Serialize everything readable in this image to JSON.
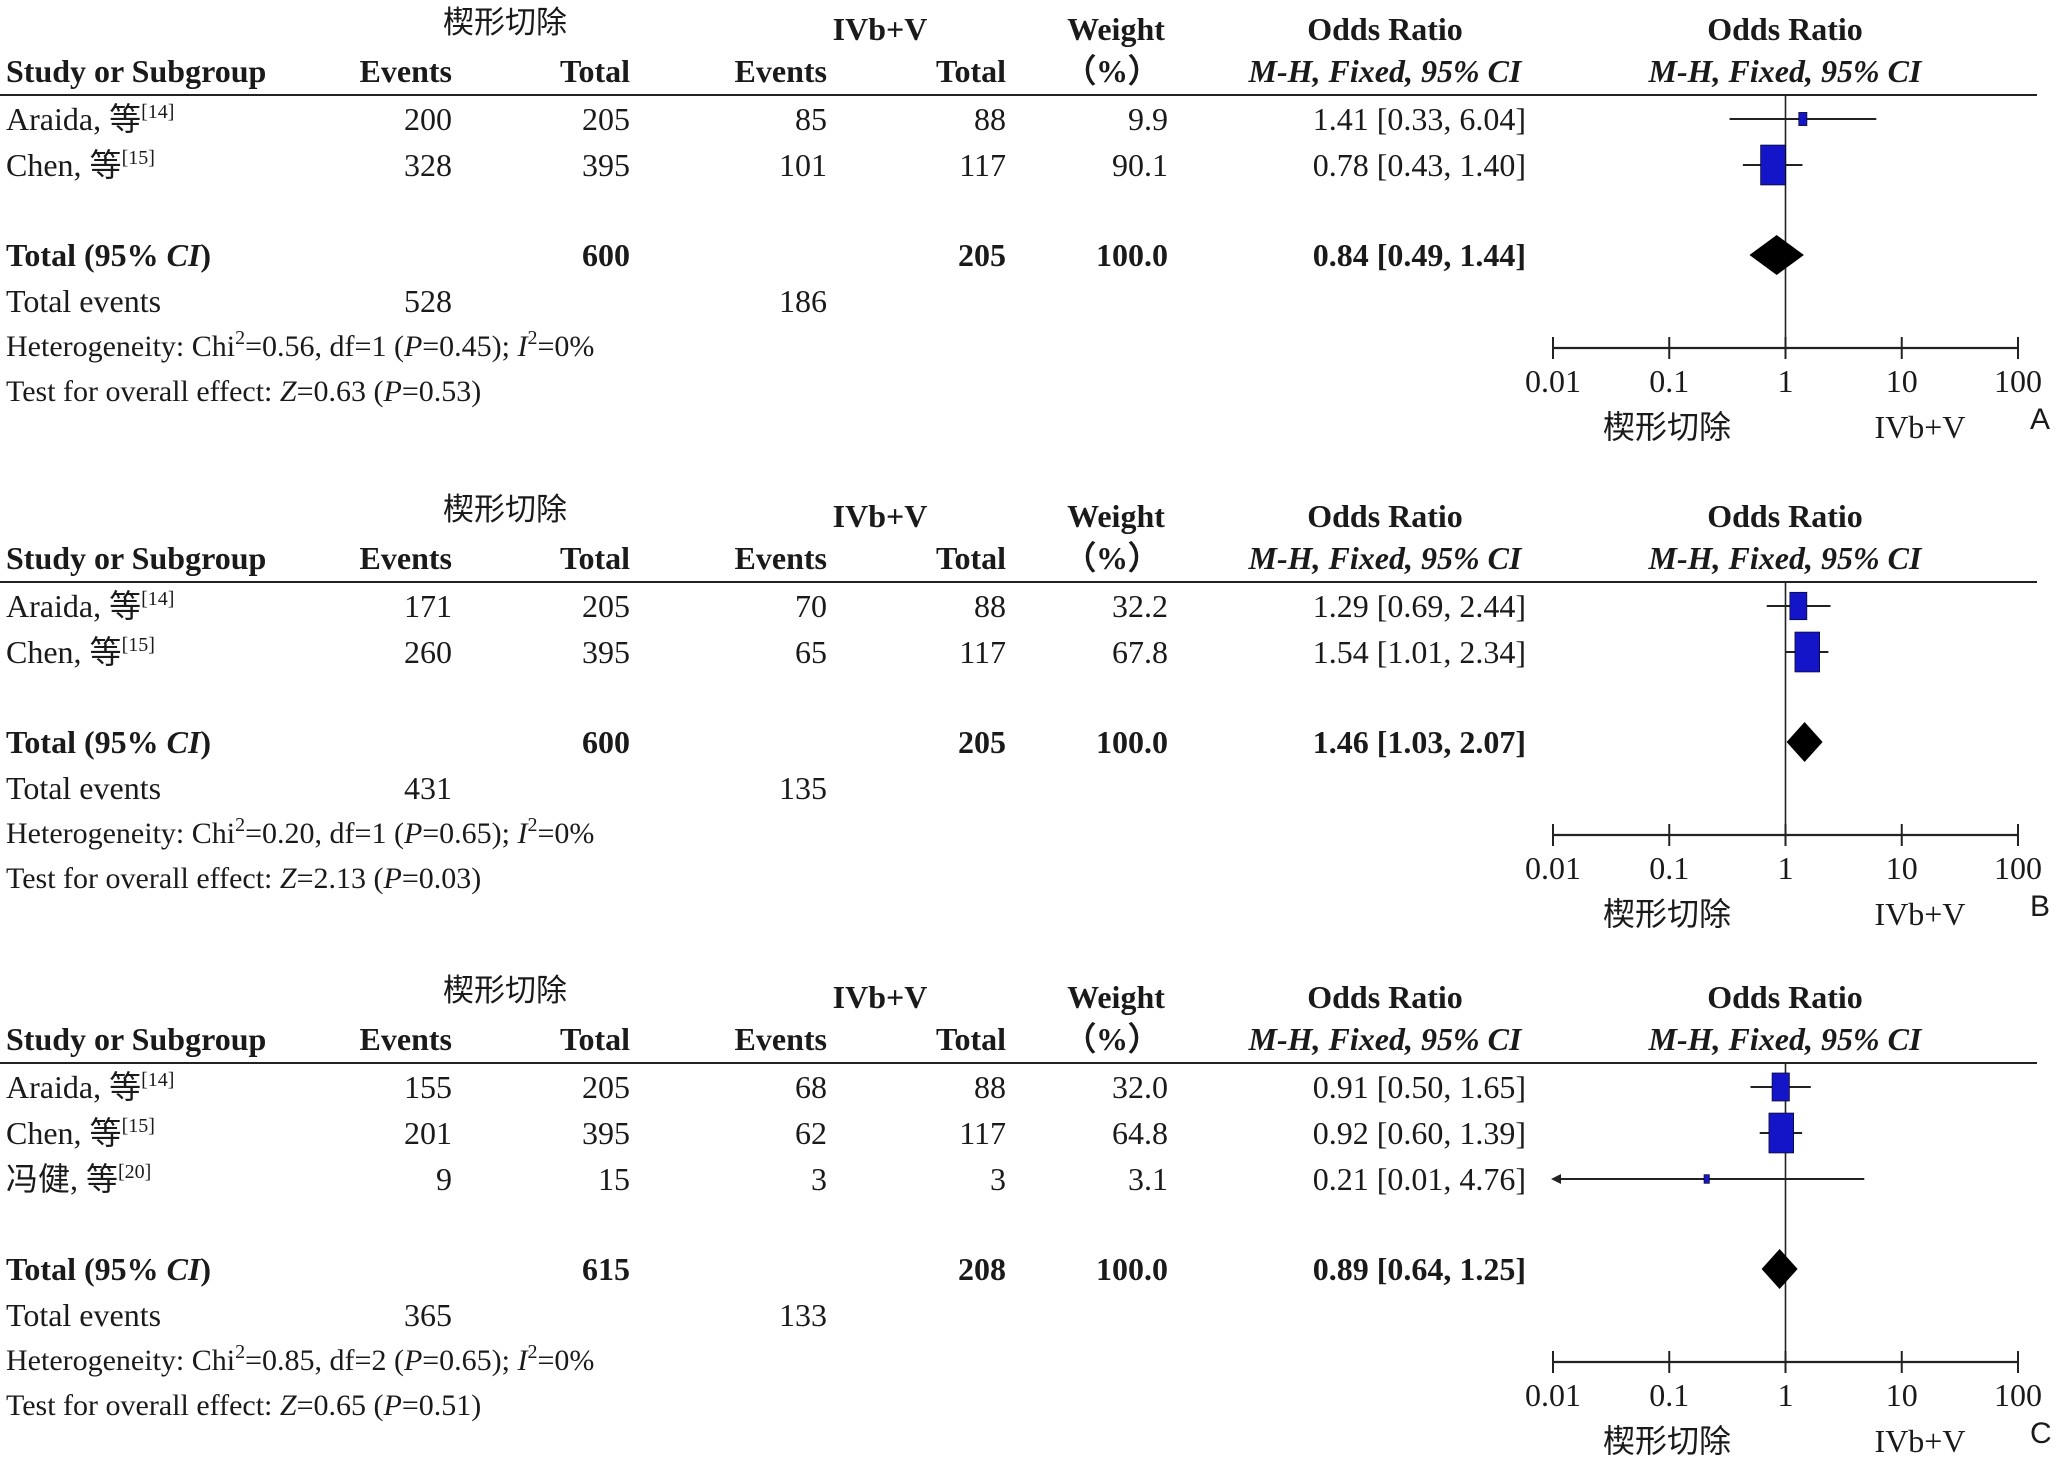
{
  "header": {
    "group1": "楔形切除",
    "group2": "IVb+V",
    "weight": "Weight",
    "weight_unit": "（%）",
    "or_title": "Odds Ratio",
    "or_method": "M-H, Fixed, 95% CI",
    "study": "Study or Subgroup",
    "events": "Events",
    "total": "Total"
  },
  "axis": {
    "ticks": [
      "0.01",
      "0.1",
      "1",
      "10",
      "100"
    ],
    "tick_values": [
      0.01,
      0.1,
      1,
      10,
      100
    ],
    "favours_left": "楔形切除",
    "favours_right": "IVb+V"
  },
  "chart_data": [
    {
      "type": "forest",
      "panel_label": "A",
      "xscale": "log",
      "xlim": [
        0.01,
        100
      ],
      "studies": [
        {
          "name": "Araida, 等",
          "ref": "[14]",
          "e1": "200",
          "n1": "205",
          "e2": "85",
          "n2": "88",
          "weight": "9.9",
          "or_text": "1.41 [0.33, 6.04]",
          "or": 1.41,
          "lo": 0.33,
          "hi": 6.04,
          "w": 9.9
        },
        {
          "name": "Chen, 等",
          "ref": "[15]",
          "e1": "328",
          "n1": "395",
          "e2": "101",
          "n2": "117",
          "weight": "90.1",
          "or_text": "0.78 [0.43, 1.40]",
          "or": 0.78,
          "lo": 0.43,
          "hi": 1.4,
          "w": 90.1
        }
      ],
      "total": {
        "label": "Total (95% ",
        "label_ci": "CI",
        "label_end": ")",
        "n1": "600",
        "n2": "205",
        "weight": "100.0",
        "or_text": "0.84 [0.49, 1.44]",
        "or": 0.84,
        "lo": 0.49,
        "hi": 1.44
      },
      "total_events": {
        "label": "Total events",
        "e1": "528",
        "e2": "186"
      },
      "heterogeneity": {
        "chi2": "0.56",
        "df": "1",
        "p": "0.45",
        "i2": "0%"
      },
      "overall": {
        "z": "0.63",
        "p": "0.53"
      }
    },
    {
      "type": "forest",
      "panel_label": "B",
      "xscale": "log",
      "xlim": [
        0.01,
        100
      ],
      "studies": [
        {
          "name": "Araida, 等",
          "ref": "[14]",
          "e1": "171",
          "n1": "205",
          "e2": "70",
          "n2": "88",
          "weight": "32.2",
          "or_text": "1.29 [0.69, 2.44]",
          "or": 1.29,
          "lo": 0.69,
          "hi": 2.44,
          "w": 32.2
        },
        {
          "name": "Chen, 等",
          "ref": "[15]",
          "e1": "260",
          "n1": "395",
          "e2": "65",
          "n2": "117",
          "weight": "67.8",
          "or_text": "1.54 [1.01, 2.34]",
          "or": 1.54,
          "lo": 1.01,
          "hi": 2.34,
          "w": 67.8
        }
      ],
      "total": {
        "label": "Total (95% ",
        "label_ci": "CI",
        "label_end": ")",
        "n1": "600",
        "n2": "205",
        "weight": "100.0",
        "or_text": "1.46 [1.03, 2.07]",
        "or": 1.46,
        "lo": 1.03,
        "hi": 2.07
      },
      "total_events": {
        "label": "Total events",
        "e1": "431",
        "e2": "135"
      },
      "heterogeneity": {
        "chi2": "0.20",
        "df": "1",
        "p": "0.65",
        "i2": "0%"
      },
      "overall": {
        "z": "2.13",
        "p": "0.03"
      }
    },
    {
      "type": "forest",
      "panel_label": "C",
      "xscale": "log",
      "xlim": [
        0.01,
        100
      ],
      "studies": [
        {
          "name": "Araida, 等",
          "ref": "[14]",
          "e1": "155",
          "n1": "205",
          "e2": "68",
          "n2": "88",
          "weight": "32.0",
          "or_text": "0.91 [0.50, 1.65]",
          "or": 0.91,
          "lo": 0.5,
          "hi": 1.65,
          "w": 32.0
        },
        {
          "name": "Chen, 等",
          "ref": "[15]",
          "e1": "201",
          "n1": "395",
          "e2": "62",
          "n2": "117",
          "weight": "64.8",
          "or_text": "0.92 [0.60, 1.39]",
          "or": 0.92,
          "lo": 0.6,
          "hi": 1.39,
          "w": 64.8
        },
        {
          "name": "冯健, 等",
          "ref": "[20]",
          "e1": "9",
          "n1": "15",
          "e2": "3",
          "n2": "3",
          "weight": "3.1",
          "or_text": "0.21 [0.01, 4.76]",
          "or": 0.21,
          "lo": 0.01,
          "hi": 4.76,
          "w": 3.1
        }
      ],
      "total": {
        "label": "Total (95% ",
        "label_ci": "CI",
        "label_end": ")",
        "n1": "615",
        "n2": "208",
        "weight": "100.0",
        "or_text": "0.89 [0.64, 1.25]",
        "or": 0.89,
        "lo": 0.64,
        "hi": 1.25
      },
      "total_events": {
        "label": "Total events",
        "e1": "365",
        "e2": "133"
      },
      "heterogeneity": {
        "chi2": "0.85",
        "df": "2",
        "p": "0.65",
        "i2": "0%"
      },
      "overall": {
        "z": "0.65",
        "p": "0.51"
      }
    }
  ],
  "colors": {
    "square": "#1414c8",
    "diamond": "#000000",
    "line": "#222222"
  }
}
